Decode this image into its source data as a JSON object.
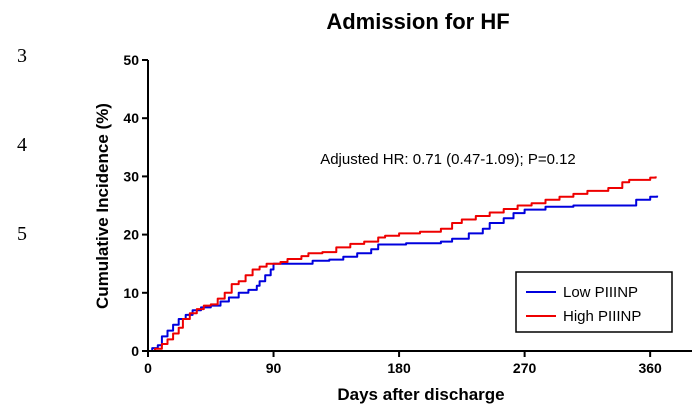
{
  "side_numbers": [
    "3",
    "4",
    "5"
  ],
  "chart_data": {
    "type": "line",
    "title": "Admission for HF",
    "xlabel": "Days after discharge",
    "ylabel": "Cumulative Incidence (%)",
    "xlim": [
      0,
      390
    ],
    "ylim": [
      0,
      50
    ],
    "xticks": [
      0,
      90,
      180,
      270,
      360
    ],
    "yticks": [
      0,
      10,
      20,
      30,
      40,
      50
    ],
    "grid": false,
    "step": true,
    "legend_position": "bottom-right",
    "annotation": "Adjusted  HR: 0.71 (0.47-1.09); P=0.12",
    "series": [
      {
        "name": "Low PIIINP",
        "color": "#0000dd",
        "points": [
          [
            0,
            0
          ],
          [
            3,
            0.5
          ],
          [
            7,
            1
          ],
          [
            10,
            2.5
          ],
          [
            14,
            3.5
          ],
          [
            18,
            4.5
          ],
          [
            22,
            5.5
          ],
          [
            27,
            6.2
          ],
          [
            32,
            7
          ],
          [
            38,
            7.5
          ],
          [
            45,
            7.8
          ],
          [
            52,
            8.5
          ],
          [
            58,
            9.2
          ],
          [
            65,
            10
          ],
          [
            72,
            10.5
          ],
          [
            78,
            11.2
          ],
          [
            80,
            12
          ],
          [
            84,
            13
          ],
          [
            88,
            14
          ],
          [
            90,
            15
          ],
          [
            110,
            15
          ],
          [
            118,
            15.5
          ],
          [
            130,
            15.7
          ],
          [
            140,
            16.2
          ],
          [
            150,
            16.8
          ],
          [
            160,
            17.5
          ],
          [
            165,
            18.3
          ],
          [
            185,
            18.5
          ],
          [
            210,
            18.8
          ],
          [
            218,
            19.3
          ],
          [
            230,
            20.2
          ],
          [
            240,
            21
          ],
          [
            245,
            22
          ],
          [
            255,
            22.8
          ],
          [
            262,
            23.7
          ],
          [
            270,
            24.3
          ],
          [
            285,
            24.8
          ],
          [
            305,
            25
          ],
          [
            345,
            25
          ],
          [
            350,
            26
          ],
          [
            360,
            26.5
          ],
          [
            365,
            26.7
          ]
        ]
      },
      {
        "name": "High PIIINP",
        "color": "#ee0000",
        "points": [
          [
            0,
            0
          ],
          [
            5,
            0.4
          ],
          [
            10,
            1.2
          ],
          [
            14,
            2
          ],
          [
            18,
            3
          ],
          [
            22,
            4
          ],
          [
            25,
            5.5
          ],
          [
            30,
            6.5
          ],
          [
            35,
            7.2
          ],
          [
            40,
            7.8
          ],
          [
            45,
            8
          ],
          [
            50,
            9
          ],
          [
            55,
            10
          ],
          [
            60,
            11.5
          ],
          [
            65,
            12
          ],
          [
            70,
            13
          ],
          [
            75,
            14
          ],
          [
            80,
            14.5
          ],
          [
            85,
            15
          ],
          [
            95,
            15.3
          ],
          [
            100,
            15.8
          ],
          [
            110,
            16.3
          ],
          [
            115,
            16.8
          ],
          [
            125,
            17
          ],
          [
            135,
            17.8
          ],
          [
            145,
            18.4
          ],
          [
            155,
            18.8
          ],
          [
            165,
            19.5
          ],
          [
            170,
            19.8
          ],
          [
            180,
            20.2
          ],
          [
            195,
            20.5
          ],
          [
            210,
            21
          ],
          [
            218,
            22
          ],
          [
            225,
            22.6
          ],
          [
            235,
            23.2
          ],
          [
            245,
            23.8
          ],
          [
            255,
            24.4
          ],
          [
            265,
            25
          ],
          [
            275,
            25.4
          ],
          [
            285,
            26
          ],
          [
            295,
            26.5
          ],
          [
            305,
            27
          ],
          [
            315,
            27.5
          ],
          [
            330,
            28
          ],
          [
            340,
            29
          ],
          [
            345,
            29.4
          ],
          [
            360,
            29.8
          ],
          [
            364,
            30
          ]
        ]
      }
    ]
  }
}
